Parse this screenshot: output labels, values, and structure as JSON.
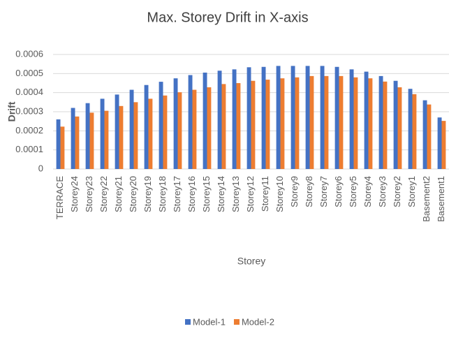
{
  "chart_data": {
    "type": "bar",
    "title": "Max. Storey Drift in X-axis",
    "x_label": "Storey",
    "y_label": "Drift",
    "categories": [
      "TERRACE",
      "Storey24",
      "Storey23",
      "Storey22",
      "Storey21",
      "Storey20",
      "Storey19",
      "Storey18",
      "Storey17",
      "Storey16",
      "Storey15",
      "Storey14",
      "Storey13",
      "Storey12",
      "Storey11",
      "Storey10",
      "Storey9",
      "Storey8",
      "Storey7",
      "Storey6",
      "Storey5",
      "Storey4",
      "Storey3",
      "Storey2",
      "Storey1",
      "Basement2",
      "Basement1"
    ],
    "series": [
      {
        "name": "Model-1",
        "color": "#4472c4",
        "values": [
          0.00026,
          0.00032,
          0.000345,
          0.000368,
          0.00039,
          0.000415,
          0.00044,
          0.000457,
          0.000475,
          0.000492,
          0.000505,
          0.000515,
          0.000522,
          0.000533,
          0.000535,
          0.00054,
          0.00054,
          0.00054,
          0.00054,
          0.000535,
          0.000522,
          0.00051,
          0.000487,
          0.000462,
          0.00042,
          0.00036,
          0.00027
        ]
      },
      {
        "name": "Model-2",
        "color": "#ed7d31",
        "values": [
          0.000222,
          0.000275,
          0.000295,
          0.000305,
          0.00033,
          0.00035,
          0.000368,
          0.000385,
          0.000402,
          0.000415,
          0.000428,
          0.000445,
          0.00045,
          0.000462,
          0.000468,
          0.000475,
          0.00048,
          0.000487,
          0.000487,
          0.000487,
          0.00048,
          0.000475,
          0.000458,
          0.000428,
          0.000392,
          0.000338,
          0.000252
        ]
      }
    ],
    "ylim": [
      0,
      0.0006
    ],
    "yticks": [
      0,
      0.0001,
      0.0002,
      0.0003,
      0.0004,
      0.0005,
      0.0006
    ],
    "grid": true,
    "legend": "bottom"
  }
}
